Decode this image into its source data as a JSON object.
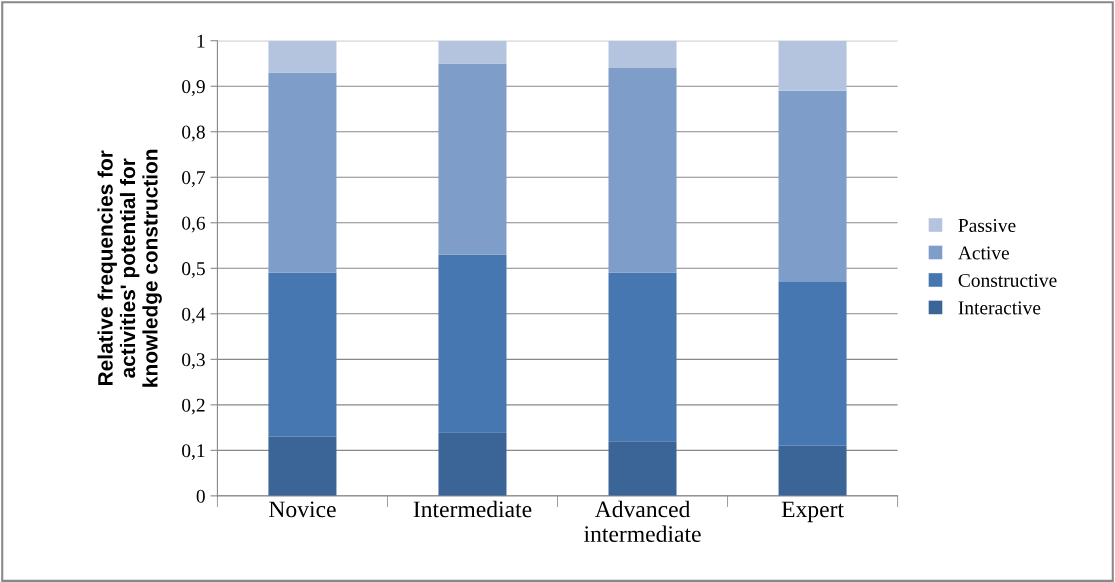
{
  "chart_data": {
    "type": "bar",
    "stacked": true,
    "ylabel": "Relative frequencies for\nactivities' potential for\nknowledge construction",
    "categories": [
      "Novice",
      "Intermediate",
      "Advanced\nintermediate",
      "Expert"
    ],
    "series": [
      {
        "name": "Interactive",
        "color": "#3b6497",
        "values": [
          0.13,
          0.14,
          0.12,
          0.11
        ]
      },
      {
        "name": "Constructive",
        "color": "#4677b0",
        "values": [
          0.36,
          0.39,
          0.37,
          0.36
        ]
      },
      {
        "name": "Active",
        "color": "#7f9dc9",
        "values": [
          0.44,
          0.42,
          0.45,
          0.42
        ]
      },
      {
        "name": "Passive",
        "color": "#b4c4df",
        "values": [
          0.07,
          0.05,
          0.06,
          0.11
        ]
      }
    ],
    "ylim": [
      0,
      1
    ],
    "yticks": [
      0,
      {
        "value": 0.1,
        "label": "0,1"
      },
      {
        "value": 0.2,
        "label": "0,2"
      },
      {
        "value": 0.3,
        "label": "0,3"
      },
      {
        "value": 0.4,
        "label": "0,4"
      },
      {
        "value": 0.5,
        "label": "0,5"
      },
      {
        "value": 0.6,
        "label": "0,6"
      },
      {
        "value": 0.7,
        "label": "0,7"
      },
      {
        "value": 0.8,
        "label": "0,8"
      },
      {
        "value": 0.9,
        "label": "0,9"
      },
      1
    ],
    "grid": "y",
    "legend": "right"
  }
}
